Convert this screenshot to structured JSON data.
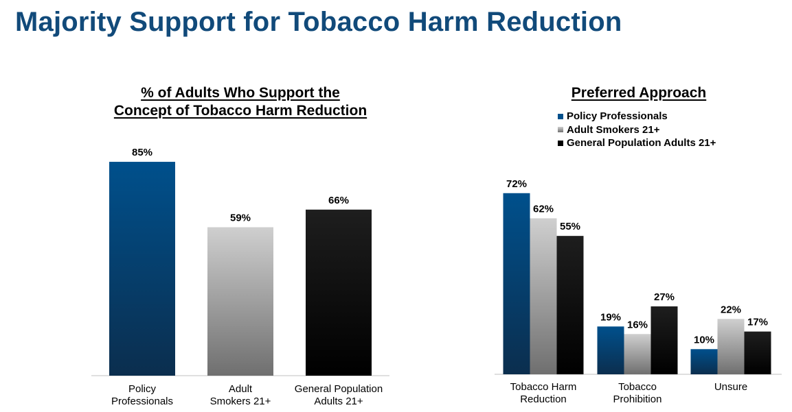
{
  "page": {
    "title": "Majority Support for Tobacco Harm Reduction"
  },
  "colors": {
    "policy_top": "#00508c",
    "policy_bottom": "#0b2e4e",
    "smokers_top": "#cfcfcf",
    "smokers_bottom": "#6f6f6f",
    "general_top": "#1e1e1e",
    "general_bottom": "#000000",
    "axis": "#bfbfbf"
  },
  "chart_data": [
    {
      "type": "bar",
      "title_lines": [
        "% of Adults Who Support the",
        "Concept of Tobacco Harm Reduction"
      ],
      "categories": [
        [
          "Policy",
          "Professionals"
        ],
        [
          "Adult",
          "Smokers 21+"
        ],
        [
          "General Population",
          "Adults 21+"
        ]
      ],
      "values": [
        85,
        59,
        66
      ],
      "value_labels": [
        "85%",
        "59%",
        "66%"
      ],
      "ylim": [
        0,
        100
      ]
    },
    {
      "type": "bar",
      "title_lines": [
        "Preferred Approach"
      ],
      "categories": [
        [
          "Tobacco Harm",
          "Reduction"
        ],
        [
          "Tobacco",
          "Prohibition"
        ],
        [
          "Unsure"
        ]
      ],
      "series": [
        {
          "name": "Policy Professionals",
          "values": [
            72,
            19,
            10
          ],
          "value_labels": [
            "72%",
            "19%",
            "10%"
          ]
        },
        {
          "name": "Adult Smokers 21+",
          "values": [
            62,
            16,
            22
          ],
          "value_labels": [
            "62%",
            "16%",
            "22%"
          ]
        },
        {
          "name": "General Population Adults 21+",
          "values": [
            55,
            27,
            17
          ],
          "value_labels": [
            "55%",
            "27%",
            "17%"
          ]
        }
      ],
      "legend": "top",
      "ylim": [
        0,
        100
      ]
    }
  ]
}
